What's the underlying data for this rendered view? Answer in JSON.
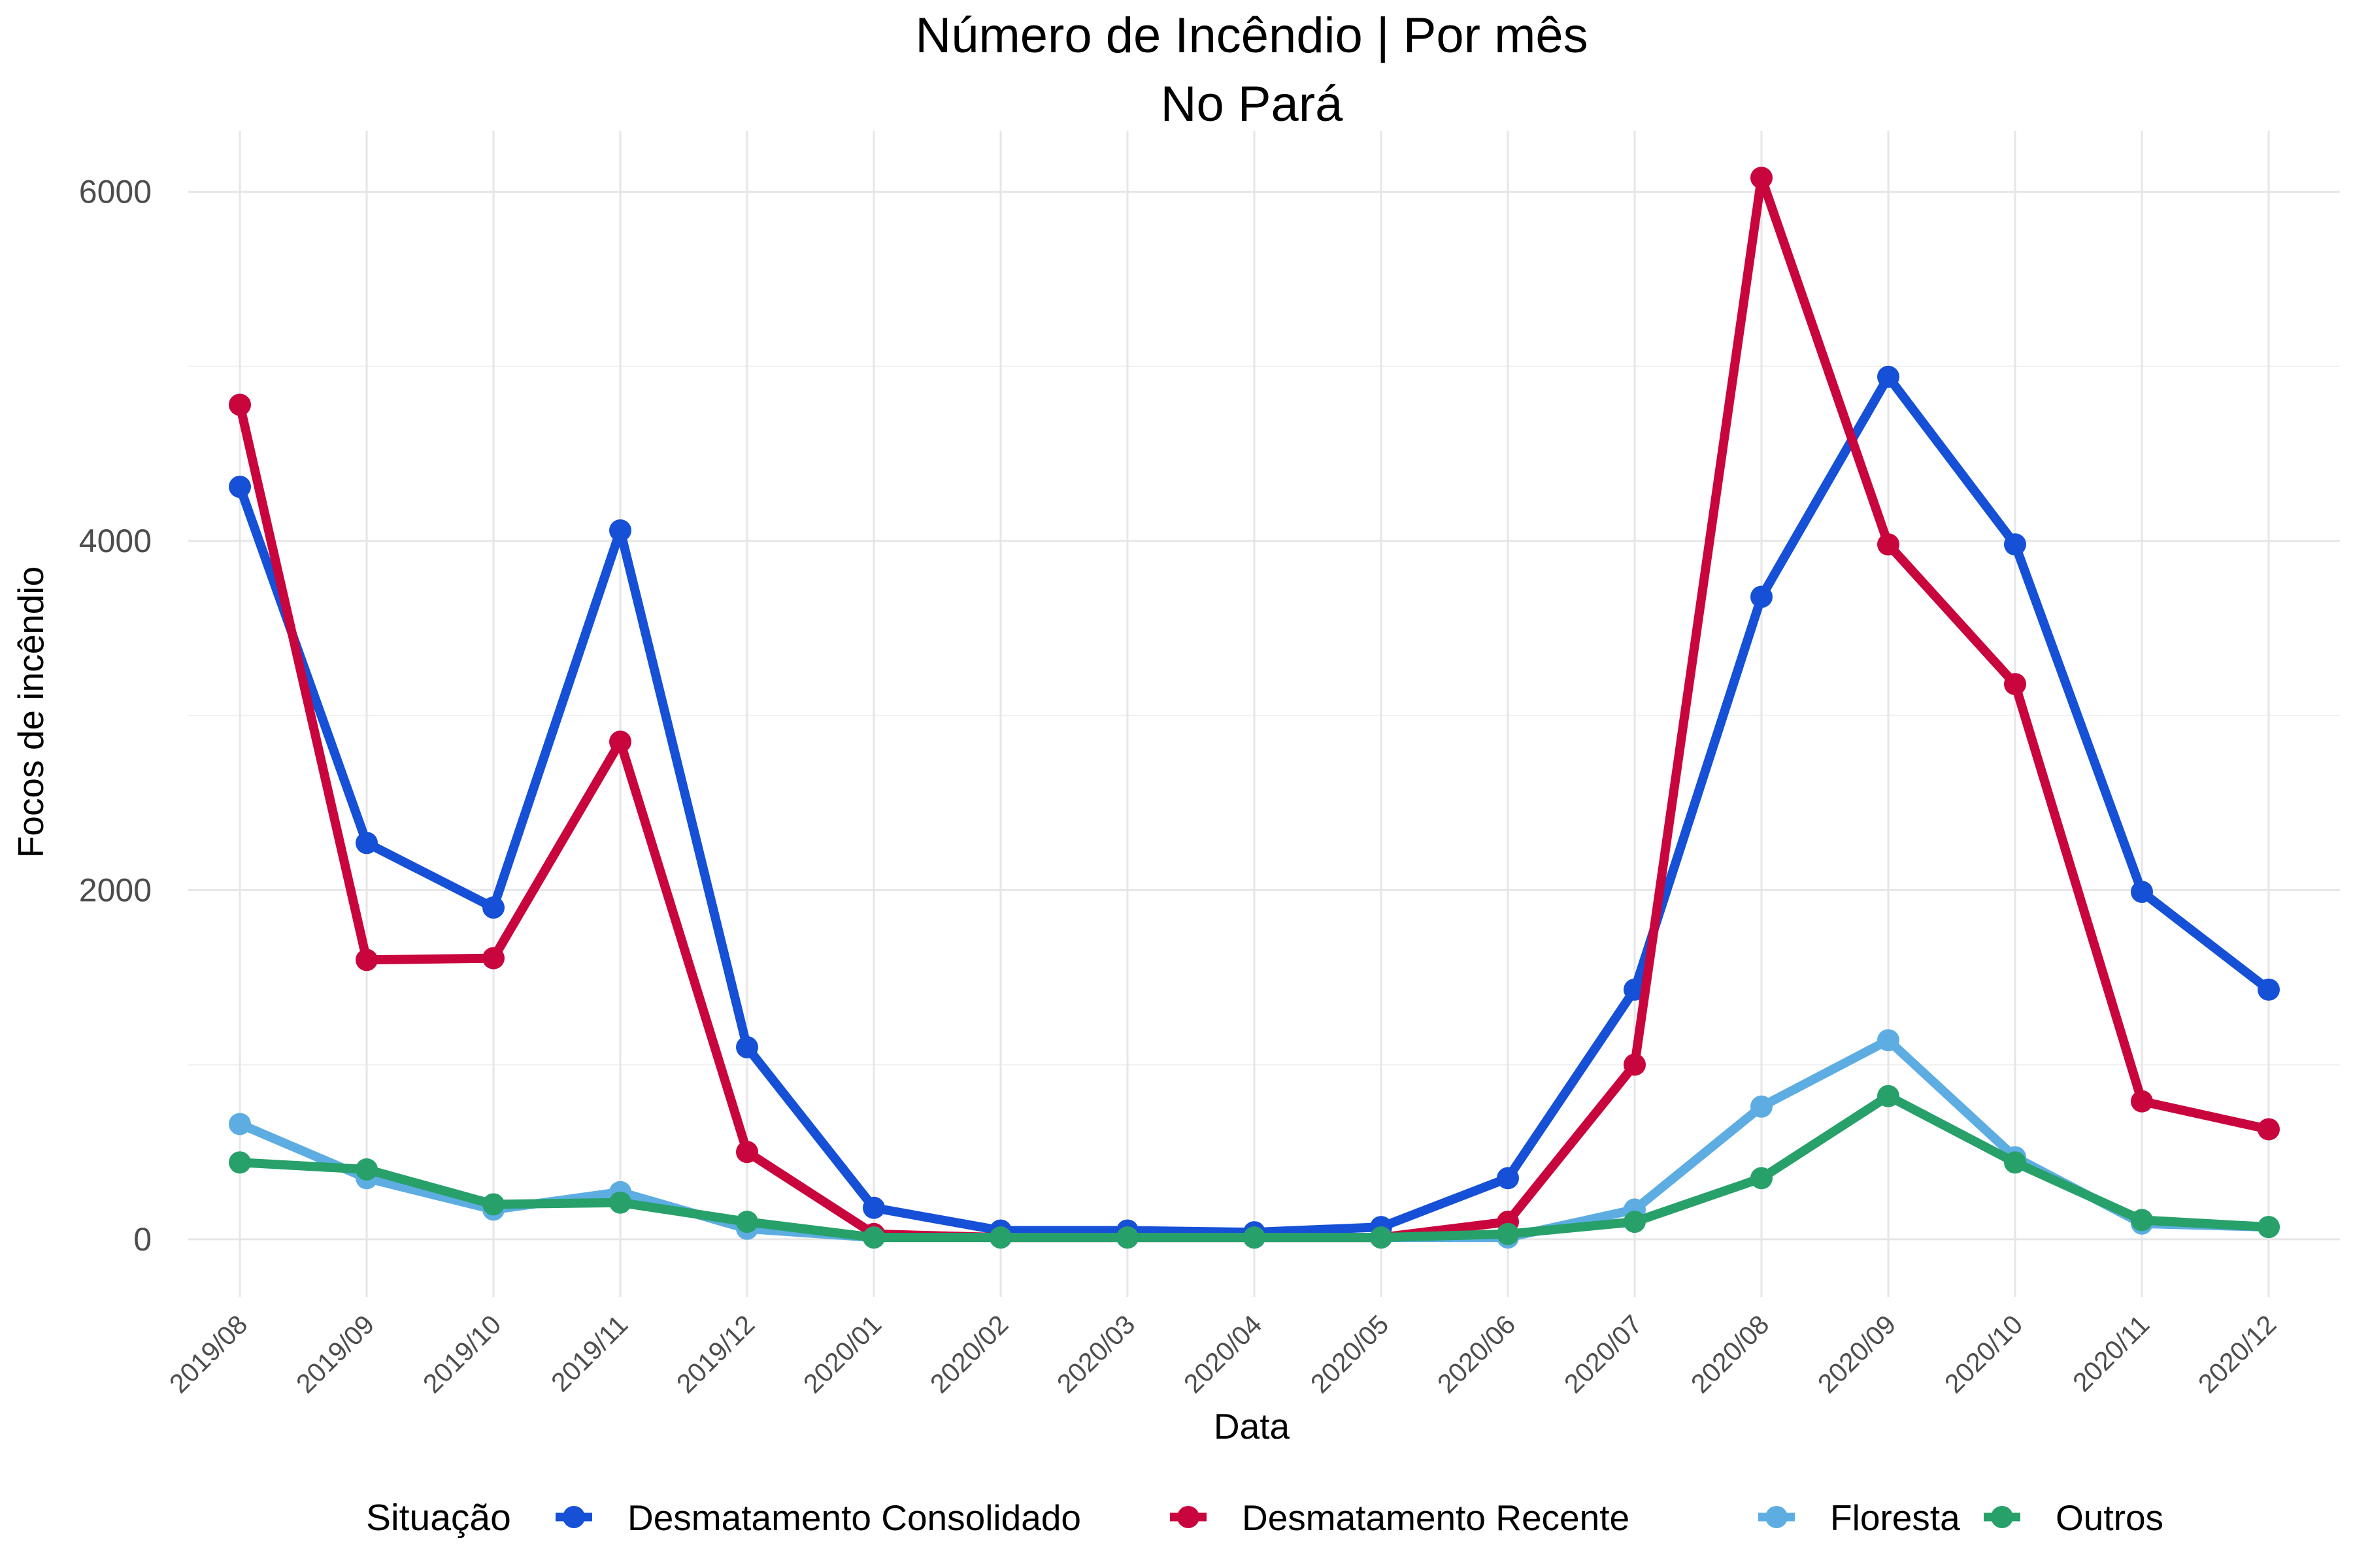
{
  "chart_data": {
    "type": "line",
    "title": "Número de Incêndio | Por mês",
    "subtitle": "No Pará",
    "xlabel": "Data",
    "ylabel": "Focos de incêndio",
    "categories": [
      "2019/08",
      "2019/09",
      "2019/10",
      "2019/11",
      "2019/12",
      "2020/01",
      "2020/02",
      "2020/03",
      "2020/04",
      "2020/05",
      "2020/06",
      "2020/07",
      "2020/08",
      "2020/09",
      "2020/10",
      "2020/11",
      "2020/12"
    ],
    "yticks": [
      "0",
      "2000",
      "4000",
      "6000"
    ],
    "ylim": [
      -330,
      6350
    ],
    "grid": true,
    "legend": {
      "title": "Situação",
      "position": "bottom"
    },
    "series": [
      {
        "name": "Desmatamento Consolidado",
        "color": "#1550d6",
        "values": [
          4310,
          2270,
          1900,
          4060,
          1100,
          180,
          50,
          50,
          40,
          70,
          350,
          1430,
          3680,
          4940,
          3980,
          1990,
          1430
        ]
      },
      {
        "name": "Desmatamento Recente",
        "color": "#c9053e",
        "values": [
          4780,
          1600,
          1610,
          2850,
          500,
          30,
          10,
          10,
          10,
          10,
          100,
          1000,
          6080,
          3980,
          3180,
          790,
          630
        ]
      },
      {
        "name": "Floresta",
        "color": "#5dade2",
        "values": [
          660,
          350,
          170,
          270,
          60,
          10,
          10,
          10,
          10,
          10,
          10,
          170,
          760,
          1140,
          470,
          90,
          70
        ]
      },
      {
        "name": "Outros",
        "color": "#27a06a",
        "values": [
          440,
          400,
          200,
          210,
          100,
          10,
          10,
          10,
          10,
          10,
          30,
          100,
          350,
          820,
          440,
          110,
          70
        ]
      }
    ]
  }
}
